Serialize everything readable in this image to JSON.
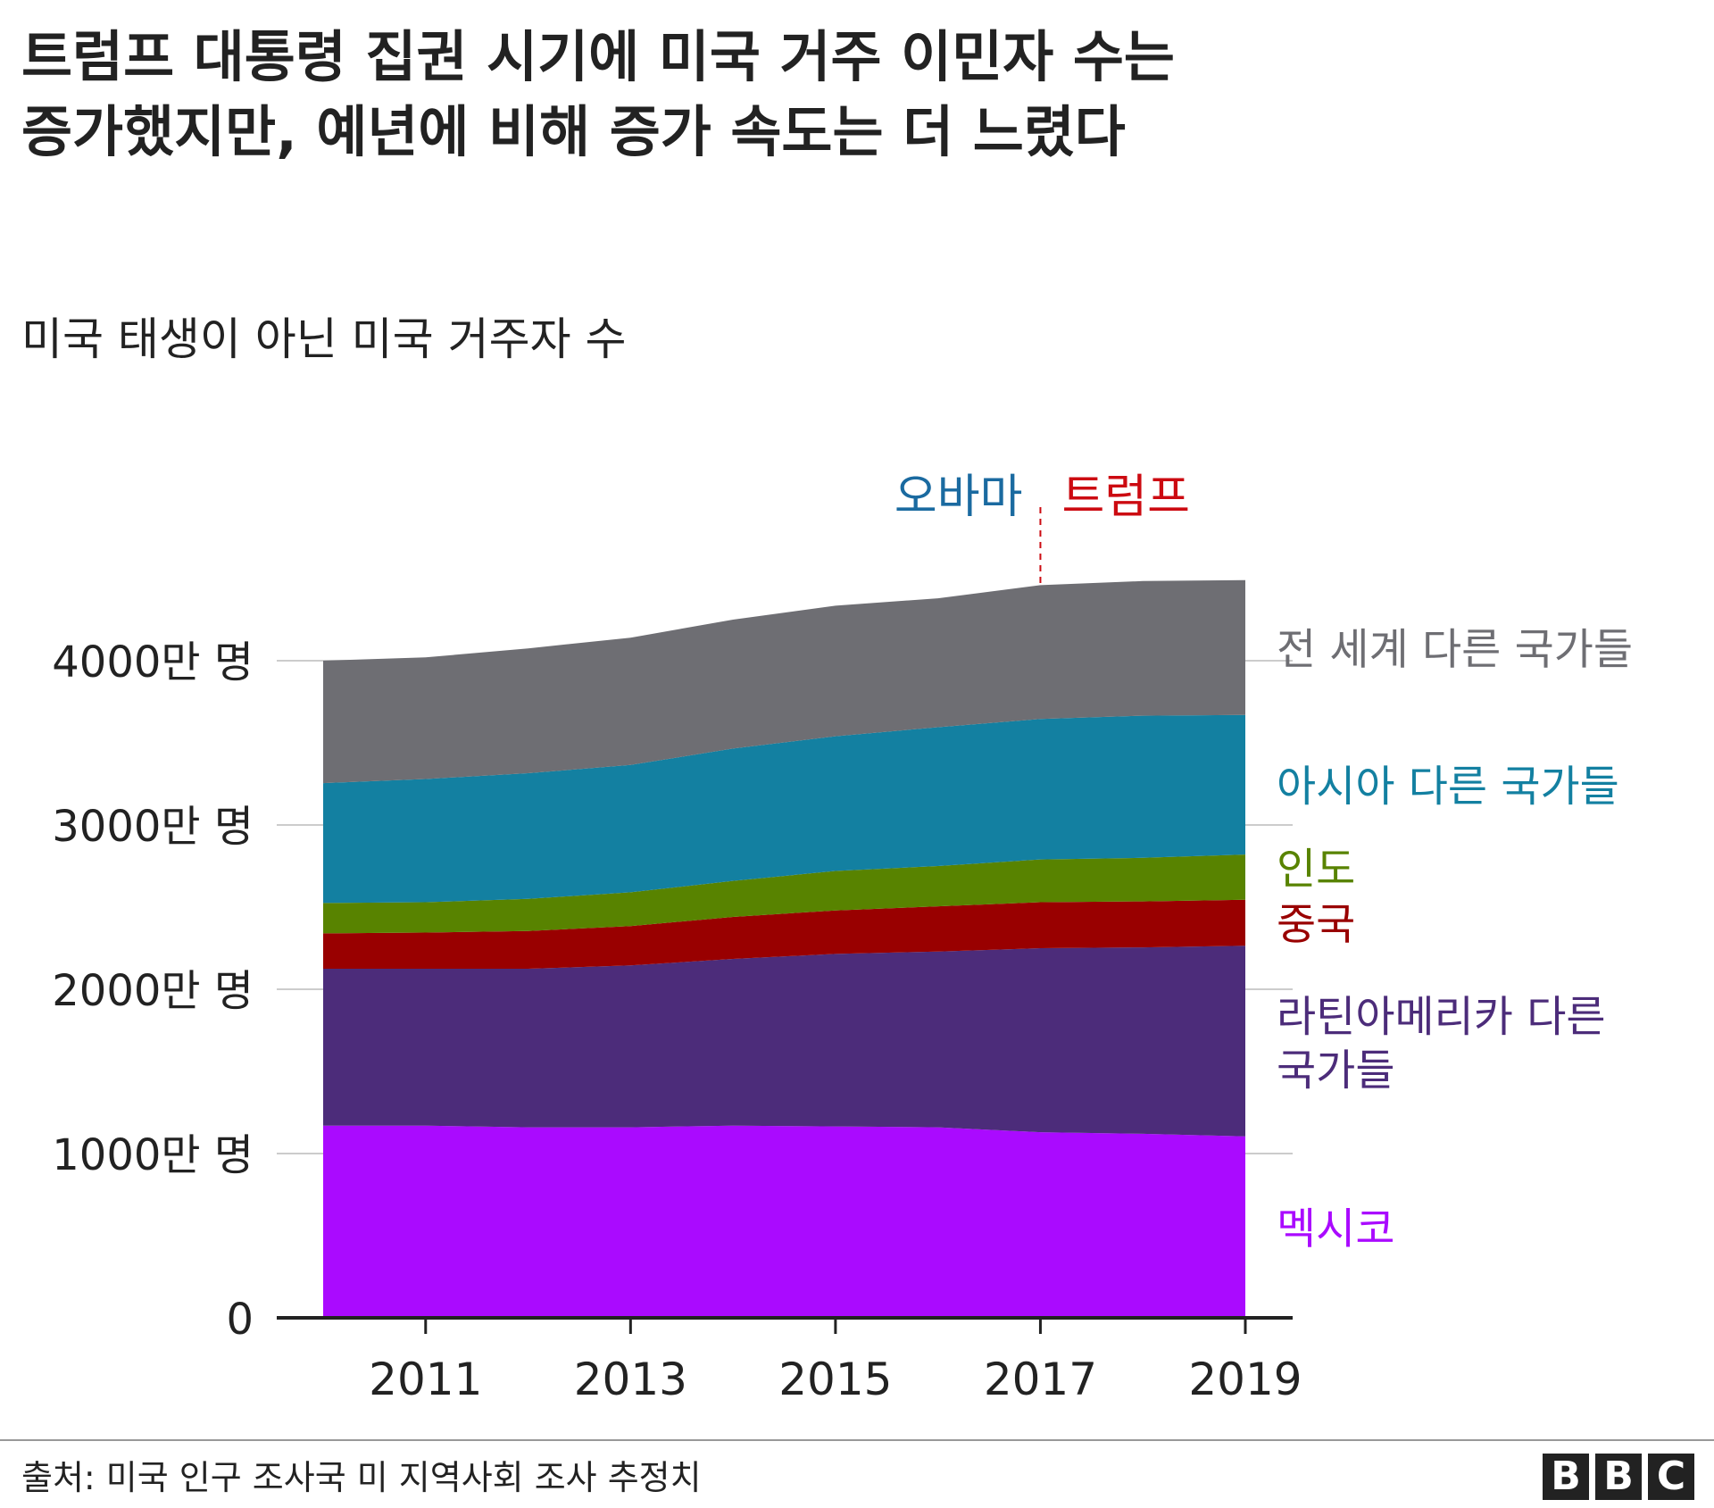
{
  "title": {
    "line1": "트럼프 대통령 집권 시기에 미국 거주 이민자 수는",
    "line2": "증가했지만, 예년에 비해 증가 속도는 더 느렸다"
  },
  "source": "출처: 미국 인구 조사국 미 지역사회 조사 추정치",
  "logo": [
    "B",
    "B",
    "C"
  ],
  "chart_data": {
    "type": "area",
    "stacked": true,
    "subtitle": "미국 태생이 아닌 미국 거주자 수",
    "x": [
      2010,
      2011,
      2012,
      2013,
      2014,
      2015,
      2016,
      2017,
      2018,
      2019
    ],
    "x_ticks": [
      2011,
      2013,
      2015,
      2017,
      2019
    ],
    "x_tick_labels": [
      "2011",
      "2013",
      "2015",
      "2017",
      "2019"
    ],
    "xlim": [
      2010,
      2019
    ],
    "ylim": [
      0,
      40000000
    ],
    "y_ticks": [
      0,
      10000000,
      20000000,
      30000000,
      40000000
    ],
    "y_tick_labels": [
      "0",
      "1000만 명",
      "2000만 명",
      "3000만 명",
      "4000만 명"
    ],
    "grid": true,
    "series": [
      {
        "name": "멕시코",
        "color": "#aa0aff",
        "values": [
          11700000,
          11700000,
          11600000,
          11600000,
          11700000,
          11650000,
          11600000,
          11300000,
          11200000,
          11050000
        ]
      },
      {
        "name": "라틴아메리카 다른 국가들",
        "color": "#4c2c7a",
        "values": [
          9550000,
          9550000,
          9650000,
          9850000,
          10150000,
          10500000,
          10700000,
          11200000,
          11350000,
          11600000
        ]
      },
      {
        "name": "중국",
        "color": "#990000",
        "values": [
          2150000,
          2200000,
          2300000,
          2400000,
          2550000,
          2650000,
          2750000,
          2800000,
          2800000,
          2800000
        ]
      },
      {
        "name": "인도",
        "color": "#588300",
        "values": [
          1850000,
          1850000,
          1950000,
          2050000,
          2200000,
          2400000,
          2450000,
          2600000,
          2650000,
          2750000
        ]
      },
      {
        "name": "아시아 다른 국가들",
        "color": "#1380a1",
        "values": [
          7300000,
          7500000,
          7650000,
          7750000,
          8050000,
          8200000,
          8450000,
          8550000,
          8650000,
          8500000
        ]
      },
      {
        "name": "전 세계 다른 국가들",
        "color": "#6e6e73",
        "values": [
          7450000,
          7400000,
          7600000,
          7750000,
          7850000,
          7950000,
          7850000,
          8150000,
          8200000,
          8200000
        ]
      }
    ],
    "annotation": {
      "x": 2017,
      "left_label": "오바마",
      "left_color": "#1a6aa0",
      "right_label": "트럼프",
      "right_color": "#cc0a11"
    }
  }
}
